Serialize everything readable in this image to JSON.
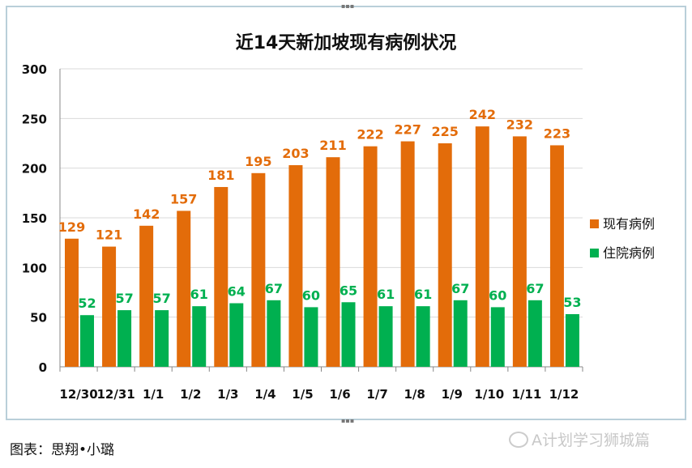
{
  "chart_data": {
    "type": "bar",
    "title": "近14天新加坡现有病例状况",
    "categories": [
      "12/30",
      "12/31",
      "1/1",
      "1/2",
      "1/3",
      "1/4",
      "1/5",
      "1/6",
      "1/7",
      "1/8",
      "1/9",
      "1/10",
      "1/11",
      "1/12"
    ],
    "series": [
      {
        "name": "现有病例",
        "color": "#e36c0a",
        "values": [
          129,
          121,
          142,
          157,
          181,
          195,
          203,
          211,
          222,
          227,
          225,
          242,
          232,
          223
        ]
      },
      {
        "name": "住院病例",
        "color": "#00b050",
        "values": [
          52,
          57,
          57,
          61,
          64,
          67,
          60,
          65,
          61,
          61,
          67,
          60,
          67,
          53
        ]
      }
    ],
    "ylim": [
      0,
      300
    ],
    "yticks": [
      0,
      50,
      100,
      150,
      200,
      250,
      300
    ],
    "grid": true,
    "legend": "right"
  },
  "caption": "图表：思翔•小璐",
  "watermark": "A计划学习狮城篇"
}
